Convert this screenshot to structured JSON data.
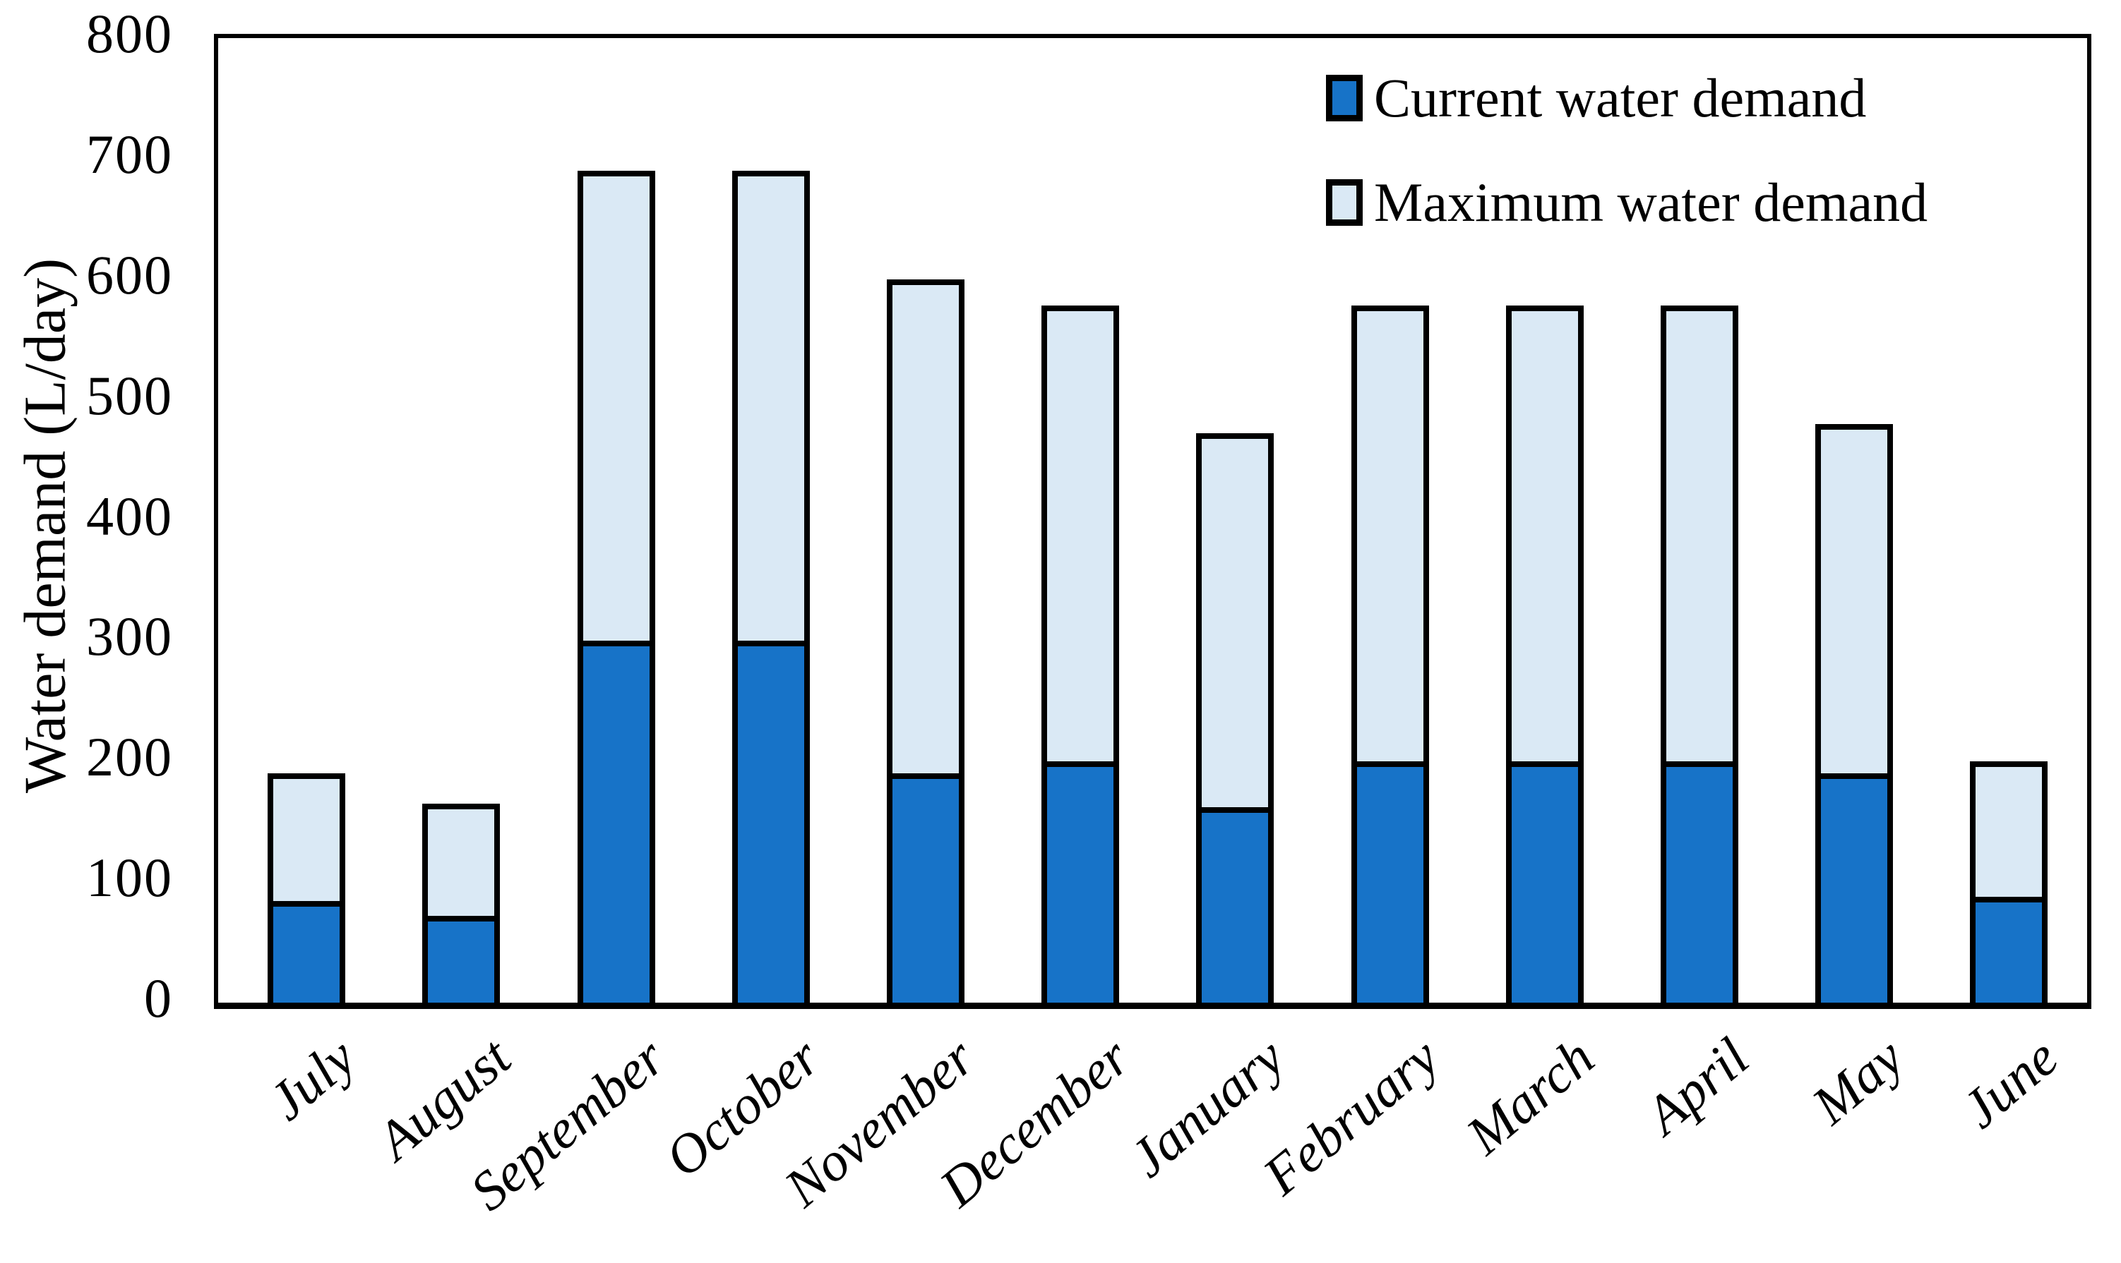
{
  "figure": {
    "background": "#ffffff",
    "ink_color": "#000000"
  },
  "y_axis": {
    "title": "Water demand (L/day)",
    "tick_values": [
      0,
      100,
      200,
      300,
      400,
      500,
      600,
      700,
      800
    ],
    "min": 0,
    "max": 800
  },
  "legend": {
    "position": "top-right-inside",
    "items": [
      {
        "label": "Current water demand",
        "color": "#1773C8"
      },
      {
        "label": "Maximum water demand",
        "color": "#DAE9F5"
      }
    ]
  },
  "chart_data": {
    "type": "bar",
    "stacked": true,
    "orientation": "vertical",
    "categories": [
      "July",
      "August",
      "September",
      "October",
      "November",
      "December",
      "January",
      "February",
      "March",
      "April",
      "May",
      "June"
    ],
    "series": [
      {
        "name": "Current water demand",
        "color": "#1773C8",
        "values": [
          84,
          72,
          300,
          300,
          190,
          200,
          162,
          200,
          200,
          200,
          190,
          88
        ]
      },
      {
        "name": "Maximum water demand",
        "color": "#DAE9F5",
        "values": [
          190,
          165,
          690,
          690,
          600,
          578,
          472,
          578,
          578,
          578,
          480,
          200
        ],
        "note": "values are the stack tops (maximum demand); light segment height = maximum - current"
      }
    ],
    "title": "",
    "xlabel": "",
    "ylabel": "Water demand (L/day)",
    "ylim": [
      0,
      800
    ],
    "grid": false,
    "bar_outline_color": "#000000",
    "x_tick_label_style": "italic, rotated ~40deg"
  }
}
